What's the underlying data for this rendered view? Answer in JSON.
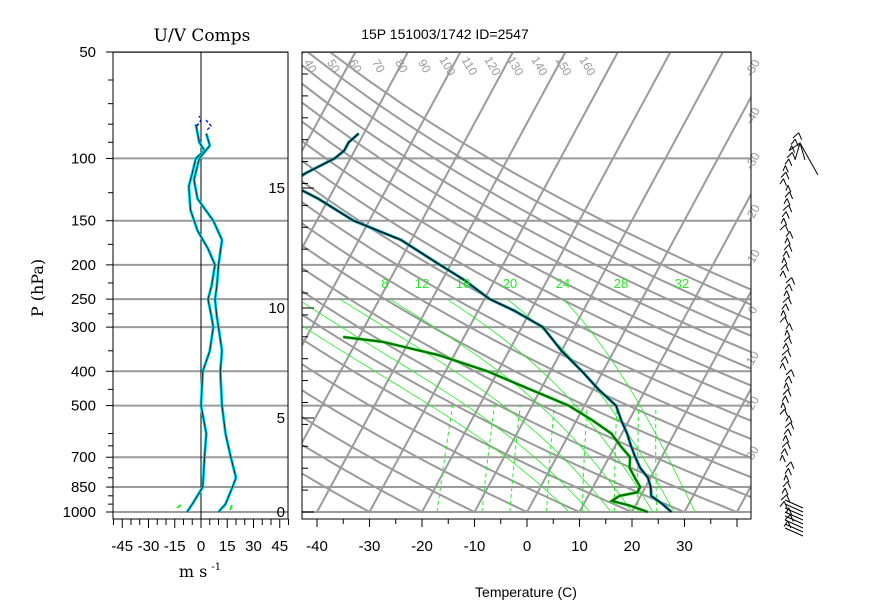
{
  "titles": {
    "left_panel": "U/V Comps",
    "main": "15P 151003/1742 ID=2547",
    "y_label": "P (hPa)",
    "x_label_left": "m s",
    "x_label_left_exp": "-1",
    "x_label_main": "Temperature (C)"
  },
  "colors": {
    "grid": "#9a9a9a",
    "temperature": "#000000",
    "temperature_overlay": "#00a0b0",
    "dewpoint": "#0a6a0a",
    "dewpoint_overlay": "#22ee22",
    "mixing_ratio": "#22ee22",
    "u_component": "#00e5ff",
    "v_component": "#0000cc"
  },
  "chart_data": [
    {
      "type": "line",
      "title": "U/V Comps",
      "ylabel": "P (hPa)",
      "xlabel": "m s -1",
      "y_scale": "log",
      "ylim": [
        1000,
        50
      ],
      "xlim": [
        -50,
        50
      ],
      "pressure_ticks": [
        "50",
        "100",
        "150",
        "200",
        "250",
        "300",
        "400",
        "500",
        "700",
        "850",
        "1000"
      ],
      "x_ticks": [
        "-45",
        "-30",
        "-15",
        "0",
        "15",
        "30",
        "45"
      ],
      "series": [
        {
          "component": "u",
          "points": [
            [
              -3,
              80
            ],
            [
              -1,
              90
            ],
            [
              2,
              95
            ],
            [
              -3,
              100
            ],
            [
              -5,
              110
            ],
            [
              -7,
              120
            ],
            [
              -6,
              140
            ],
            [
              -2,
              160
            ],
            [
              4,
              180
            ],
            [
              8,
              200
            ],
            [
              6,
              230
            ],
            [
              4,
              250
            ],
            [
              6,
              280
            ],
            [
              7,
              300
            ],
            [
              5,
              350
            ],
            [
              1,
              400
            ],
            [
              0,
              500
            ],
            [
              3,
              600
            ],
            [
              2,
              700
            ],
            [
              1,
              850
            ],
            [
              -5,
              950
            ],
            [
              -8,
              1000
            ]
          ]
        },
        {
          "component": "v",
          "points": [
            [
              3,
              85
            ],
            [
              5,
              92
            ],
            [
              -1,
              100
            ],
            [
              -4,
              115
            ],
            [
              -2,
              130
            ],
            [
              7,
              150
            ],
            [
              12,
              170
            ],
            [
              10,
              200
            ],
            [
              9,
              230
            ],
            [
              8,
              250
            ],
            [
              9,
              280
            ],
            [
              10,
              300
            ],
            [
              12,
              350
            ],
            [
              11,
              400
            ],
            [
              12,
              500
            ],
            [
              14,
              600
            ],
            [
              17,
              700
            ],
            [
              20,
              800
            ],
            [
              18,
              850
            ],
            [
              14,
              950
            ],
            [
              10,
              1000
            ]
          ]
        }
      ]
    },
    {
      "type": "line",
      "title": "15P 151003/1742 ID=2547",
      "xlabel": "Temperature (C)",
      "y_scale": "log",
      "xlim": [
        -40,
        40
      ],
      "x_ticks": [
        "-40",
        "-30",
        "-20",
        "-10",
        "0",
        "10",
        "20",
        "30"
      ],
      "height_axis_km_ticks": [
        "0",
        "5",
        "10",
        "15"
      ],
      "isotherm_labels": [
        "-50",
        "-40",
        "-30",
        "-20",
        "-10",
        "0",
        "10",
        "20",
        "30"
      ],
      "dry_adiabat_labels": [
        "40",
        "50",
        "60",
        "70",
        "80",
        "90",
        "100",
        "110",
        "120",
        "130",
        "140",
        "150",
        "160"
      ],
      "mixing_ratio_labels": [
        "8",
        "12",
        "16",
        "20",
        "24",
        "28",
        "32"
      ],
      "series": [
        {
          "name": "temperature",
          "points": [
            [
              27.5,
              1000
            ],
            [
              25,
              950
            ],
            [
              22,
              900
            ],
            [
              21,
              850
            ],
            [
              19.5,
              800
            ],
            [
              17,
              750
            ],
            [
              15,
              700
            ],
            [
              13,
              650
            ],
            [
              11,
              600
            ],
            [
              8.5,
              550
            ],
            [
              6,
              500
            ],
            [
              1,
              450
            ],
            [
              -4,
              400
            ],
            [
              -10,
              350
            ],
            [
              -16,
              300
            ],
            [
              -23,
              270
            ],
            [
              -29,
              250
            ],
            [
              -36,
              220
            ],
            [
              -42,
              200
            ],
            [
              -52,
              170
            ],
            [
              -63,
              150
            ],
            [
              -72,
              130
            ],
            [
              -79,
              118
            ],
            [
              -77,
              110
            ],
            [
              -73,
              100
            ],
            [
              -72,
              95
            ],
            [
              -72,
              90
            ],
            [
              -71,
              85
            ]
          ]
        },
        {
          "name": "dewpoint",
          "points": [
            [
              23,
              1000
            ],
            [
              19,
              960
            ],
            [
              15,
              930
            ],
            [
              16,
              900
            ],
            [
              17.5,
              890
            ],
            [
              19,
              880
            ],
            [
              19,
              850
            ],
            [
              17,
              800
            ],
            [
              15,
              750
            ],
            [
              14,
              700
            ],
            [
              11,
              650
            ],
            [
              8,
              600
            ],
            [
              3,
              550
            ],
            [
              -3,
              500
            ],
            [
              -12,
              450
            ],
            [
              -22,
              400
            ],
            [
              -33,
              360
            ],
            [
              -45,
              330
            ],
            [
              -53,
              320
            ]
          ]
        }
      ]
    }
  ]
}
